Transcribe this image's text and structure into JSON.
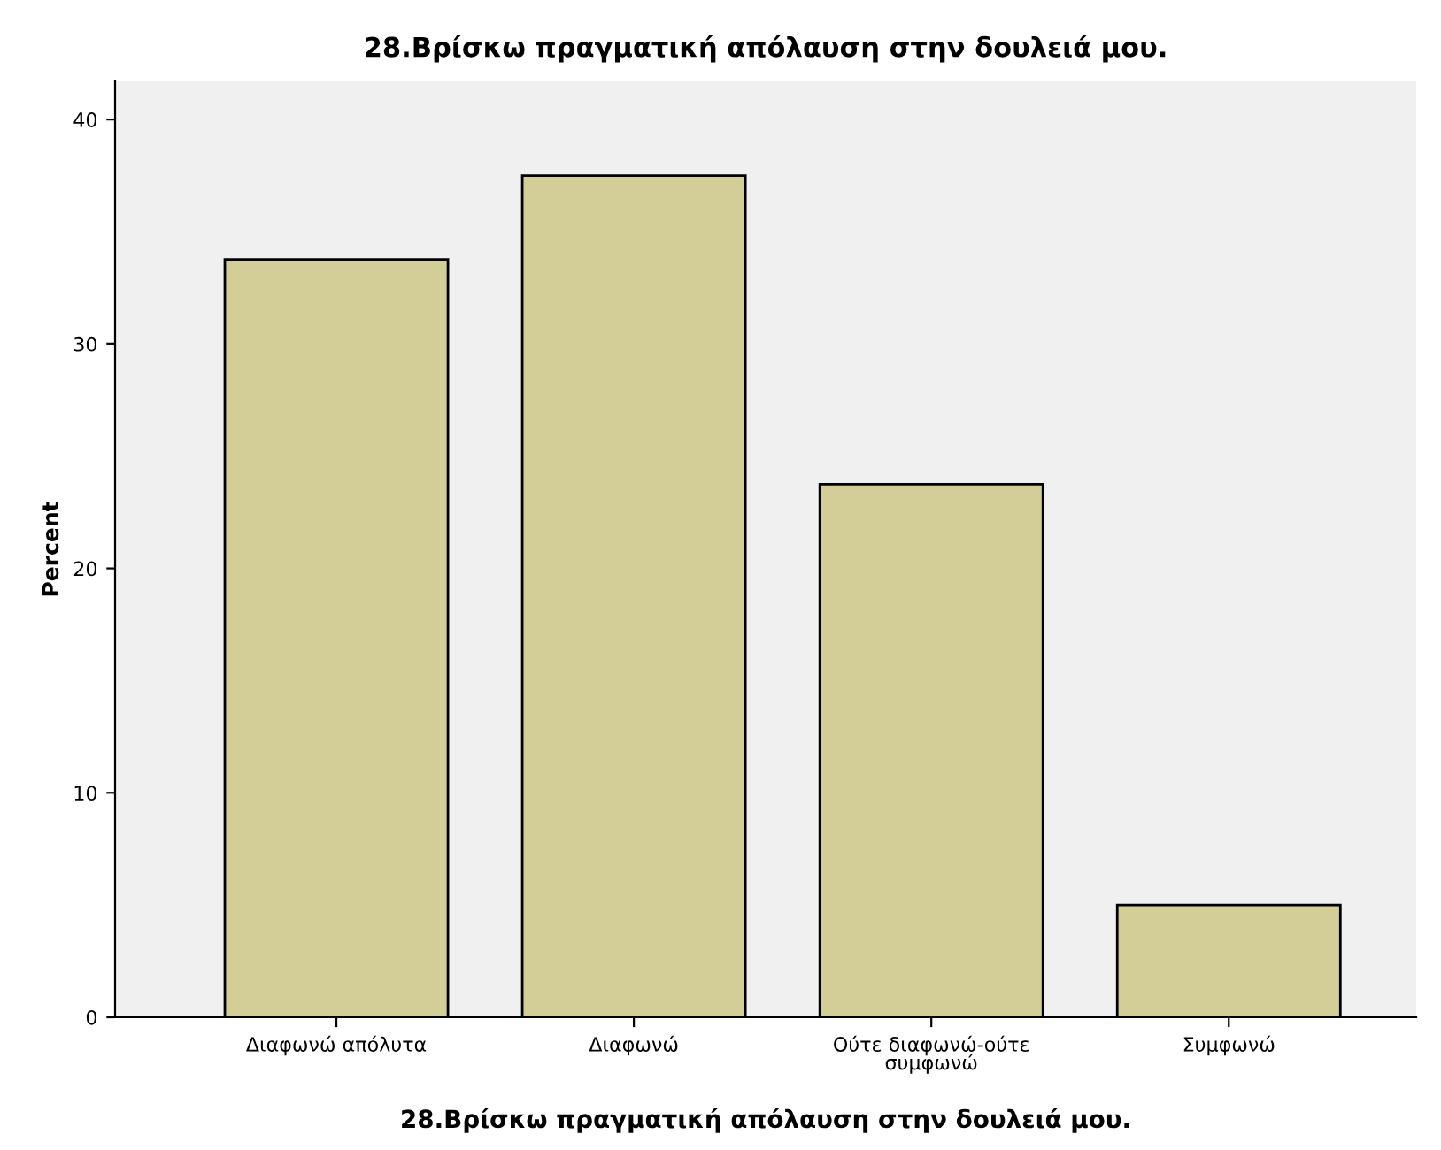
{
  "chart_data": {
    "type": "bar",
    "title": "28.Βρίσκω πραγματική απόλαυση στην δουλειά μου.",
    "xlabel": "28.Βρίσκω πραγματική απόλαυση στην δουλειά μου.",
    "ylabel": "Percent",
    "categories": [
      "Διαφωνώ απόλυτα",
      "Διαφωνώ",
      "Ούτε διαφωνώ-ούτε\nσυμφωνώ",
      "Συμφωνώ"
    ],
    "values": [
      33.75,
      37.5,
      23.75,
      5
    ],
    "color": "#d3ce97",
    "ylim": [
      0,
      41.7
    ],
    "yticks": [
      0,
      10,
      20,
      30,
      40
    ],
    "grid": false,
    "legend": false
  }
}
